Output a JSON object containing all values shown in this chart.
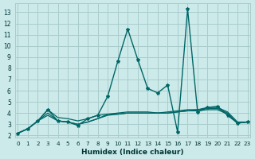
{
  "xlabel": "Humidex (Indice chaleur)",
  "bg_color": "#cceaea",
  "grid_color": "#aacccc",
  "line_color": "#006666",
  "x_ticks": [
    0,
    1,
    2,
    3,
    4,
    5,
    6,
    7,
    8,
    9,
    10,
    11,
    12,
    13,
    14,
    15,
    16,
    17,
    18,
    19,
    20,
    21,
    22,
    23
  ],
  "y_ticks": [
    2,
    3,
    4,
    5,
    6,
    7,
    8,
    9,
    10,
    11,
    12,
    13
  ],
  "ylim": [
    1.8,
    13.8
  ],
  "xlim": [
    -0.3,
    23.3
  ],
  "series": [
    {
      "y": [
        2.2,
        2.6,
        3.3,
        4.3,
        3.3,
        3.2,
        2.9,
        3.5,
        3.8,
        5.5,
        8.6,
        11.5,
        8.8,
        6.2,
        5.8,
        6.5,
        2.3,
        13.3,
        4.1,
        4.5,
        4.6,
        3.8,
        3.1,
        3.2
      ],
      "marker": true,
      "lw": 1.0
    },
    {
      "y": [
        2.2,
        2.6,
        3.3,
        4.3,
        3.6,
        3.5,
        3.3,
        3.5,
        3.8,
        3.9,
        4.0,
        4.1,
        4.1,
        4.1,
        4.0,
        4.1,
        4.2,
        4.3,
        4.3,
        4.5,
        4.5,
        4.1,
        3.2,
        3.2
      ],
      "marker": false,
      "lw": 0.9
    },
    {
      "y": [
        2.2,
        2.6,
        3.3,
        3.8,
        3.3,
        3.2,
        3.0,
        3.2,
        3.5,
        3.8,
        3.9,
        4.0,
        4.0,
        4.0,
        4.0,
        4.0,
        4.1,
        4.2,
        4.3,
        4.4,
        4.4,
        4.0,
        3.1,
        3.2
      ],
      "marker": false,
      "lw": 0.9
    },
    {
      "y": [
        2.2,
        2.6,
        3.3,
        4.0,
        3.3,
        3.2,
        3.0,
        3.2,
        3.5,
        3.9,
        3.9,
        4.0,
        4.0,
        4.0,
        4.0,
        4.0,
        4.1,
        4.2,
        4.2,
        4.3,
        4.3,
        3.9,
        3.1,
        3.2
      ],
      "marker": false,
      "lw": 0.9
    }
  ]
}
